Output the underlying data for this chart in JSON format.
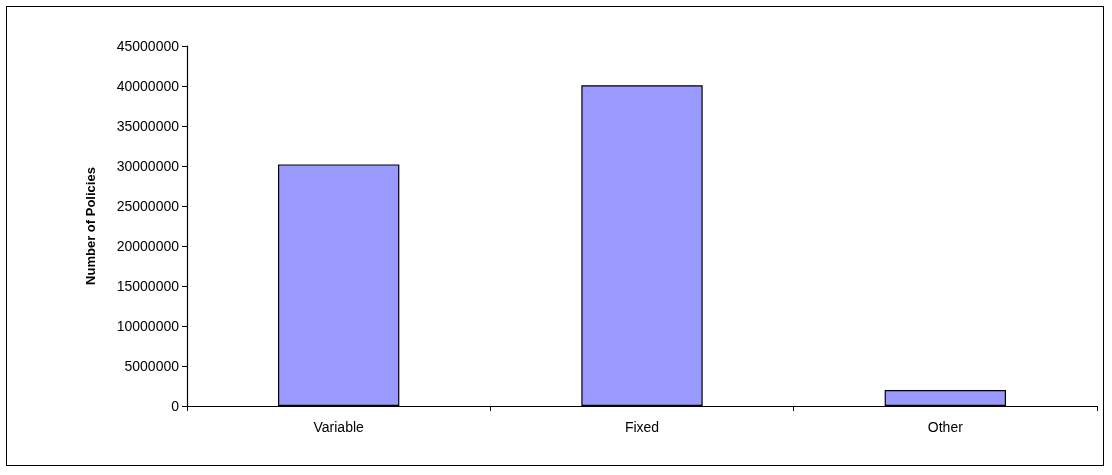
{
  "chart_data": {
    "type": "bar",
    "ylabel": "Number of Policies",
    "categories": [
      "Variable",
      "Fixed",
      "Other"
    ],
    "values": [
      30200000,
      40100000,
      2000000
    ],
    "color": "#9999ff",
    "ylim": [
      0,
      45000000
    ],
    "yticks": [
      0,
      5000000,
      10000000,
      15000000,
      20000000,
      25000000,
      30000000,
      35000000,
      40000000,
      45000000
    ],
    "grid": false
  }
}
